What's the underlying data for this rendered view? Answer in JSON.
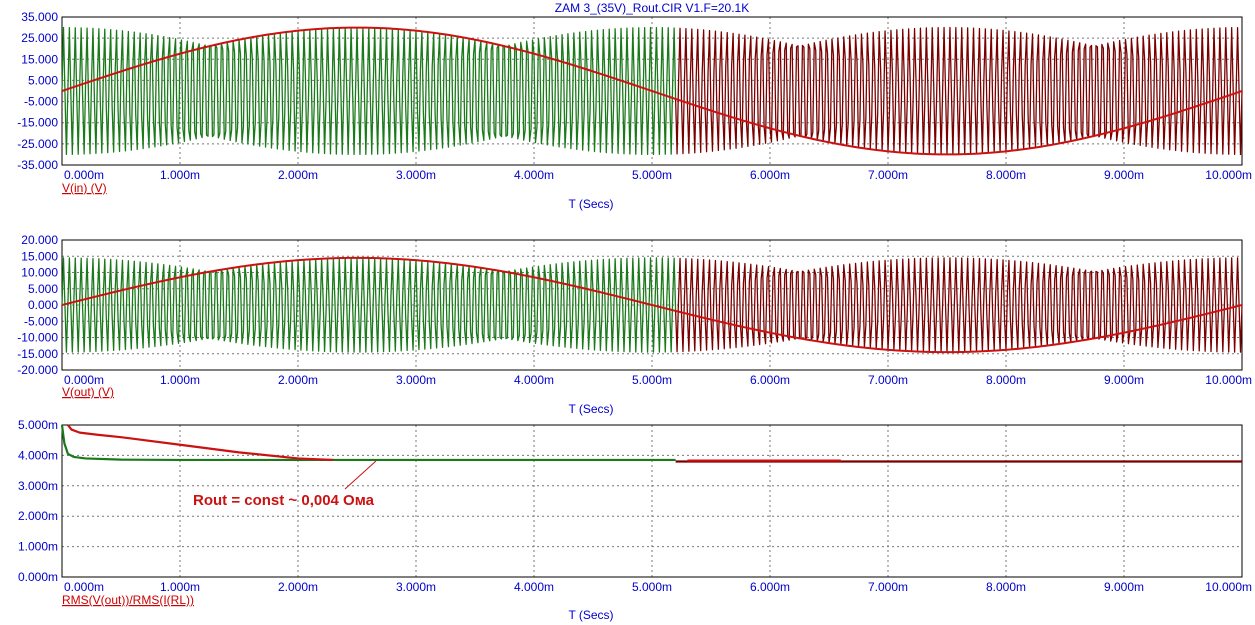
{
  "window_title": "ZAM 3_(35V)_Rout.CIR V1.F=20.1K",
  "x_axis": {
    "title": "T (Secs)",
    "ticks": [
      "0.000m",
      "1.000m",
      "2.000m",
      "3.000m",
      "4.000m",
      "5.000m",
      "6.000m",
      "7.000m",
      "8.000m",
      "9.000m",
      "10.000m"
    ]
  },
  "colors": {
    "tick_text": "#0000cc",
    "trace_label": "#cc0000",
    "green_trace": "#1a7a1a",
    "dark_red_trace": "#7a0000",
    "red_trace": "#cc1111"
  },
  "chart_data": [
    {
      "type": "line",
      "trace_label": "V(in) (V)",
      "xlabel": "T (Secs)",
      "xlim": [
        0,
        10
      ],
      "x_unit": "ms",
      "ylim": [
        -35,
        35
      ],
      "y_ticks": [
        "35.000",
        "25.000",
        "15.000",
        "5.000",
        "-5.000",
        "-15.000",
        "-25.000",
        "-35.000"
      ],
      "grid": true,
      "series": [
        {
          "kind": "carrier",
          "amplitude": 30,
          "x_range": [
            0,
            5.2
          ],
          "color": "green"
        },
        {
          "kind": "carrier",
          "amplitude": 30,
          "x_range": [
            5.2,
            10
          ],
          "color": "dark_red"
        },
        {
          "kind": "envelope",
          "x": [
            0,
            2.5,
            5.0,
            7.5,
            10.0
          ],
          "y": [
            0,
            30,
            0,
            -30,
            0
          ],
          "color": "red"
        }
      ]
    },
    {
      "type": "line",
      "trace_label": "V(out) (V)",
      "xlabel": "T (Secs)",
      "xlim": [
        0,
        10
      ],
      "x_unit": "ms",
      "ylim": [
        -20,
        20
      ],
      "y_ticks": [
        "20.000",
        "15.000",
        "10.000",
        "5.000",
        "0.000",
        "-5.000",
        "-10.000",
        "-15.000",
        "-20.000"
      ],
      "grid": true,
      "series": [
        {
          "kind": "carrier",
          "amplitude": 14.5,
          "x_range": [
            0,
            5.2
          ],
          "color": "green"
        },
        {
          "kind": "carrier",
          "amplitude": 14.5,
          "x_range": [
            5.2,
            10
          ],
          "color": "dark_red"
        },
        {
          "kind": "envelope",
          "x": [
            0,
            2.5,
            5.0,
            7.5,
            10.0
          ],
          "y": [
            0,
            14.5,
            0,
            -14.5,
            0
          ],
          "color": "red"
        }
      ]
    },
    {
      "type": "line",
      "trace_label": "RMS(V(out))/RMS(I(RL))",
      "xlabel": "T (Secs)",
      "xlim": [
        0,
        10
      ],
      "x_unit": "ms",
      "ylim": [
        0,
        5
      ],
      "y_ticks": [
        "5.000m",
        "4.000m",
        "3.000m",
        "2.000m",
        "1.000m",
        "0.000m"
      ],
      "grid": true,
      "series": [
        {
          "kind": "polyline",
          "color": "green",
          "x": [
            0,
            0.02,
            0.05,
            0.1,
            0.2,
            0.5,
            1.0,
            2.0,
            5.2
          ],
          "y": [
            5.0,
            4.4,
            4.05,
            3.95,
            3.9,
            3.86,
            3.85,
            3.85,
            3.85
          ]
        },
        {
          "kind": "polyline",
          "color": "red",
          "x": [
            0.05,
            0.08,
            0.15,
            0.3,
            0.5,
            1.0,
            1.5,
            2.0,
            2.3
          ],
          "y": [
            5.0,
            4.85,
            4.75,
            4.68,
            4.6,
            4.35,
            4.1,
            3.9,
            3.85
          ]
        },
        {
          "kind": "polyline",
          "color": "dark_red",
          "x": [
            5.2,
            10.0
          ],
          "y": [
            3.8,
            3.8
          ]
        },
        {
          "kind": "polyline",
          "color": "red",
          "x": [
            5.3,
            6.6
          ],
          "y": [
            3.83,
            3.83
          ]
        }
      ],
      "annotation": {
        "text": "Rout = const ~ 0,004 Ома",
        "x": 2.6,
        "y": 3.88
      }
    }
  ]
}
